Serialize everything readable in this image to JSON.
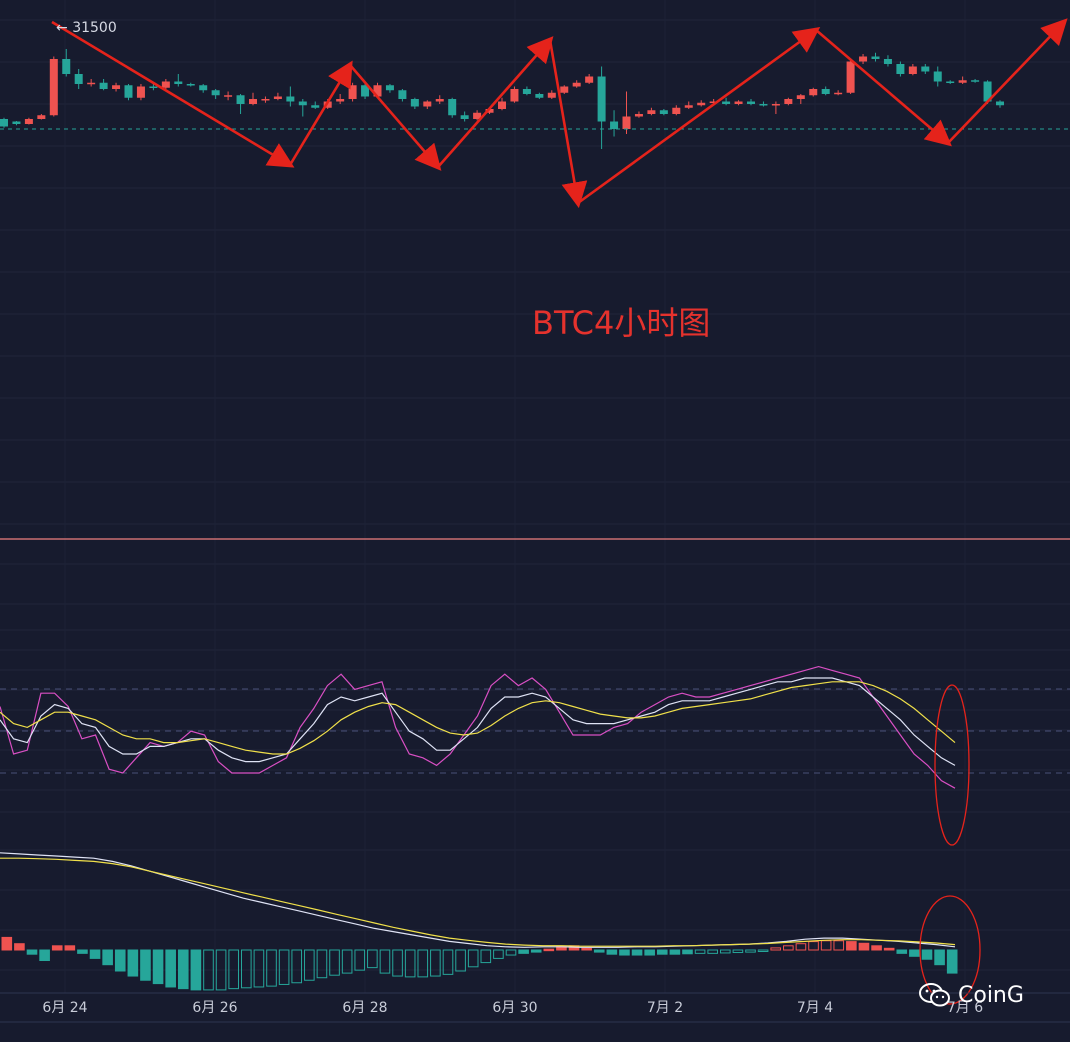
{
  "price_marker": {
    "arrow": "←",
    "value": "31500"
  },
  "overlay_title": "BTC4小时图",
  "watermark": {
    "icon": "wechat-icon",
    "text": "CoinG"
  },
  "x_axis_labels": [
    "6月 24",
    "6月 26",
    "6月 28",
    "6月 30",
    "7月 2",
    "7月 4",
    "7月 6"
  ],
  "colors": {
    "background": "#171b2e",
    "up": "#ef5350",
    "down": "#26a69a",
    "annotation": "#e5231b",
    "kdj_j": "#d94fc4",
    "kdj_k": "#dfe3f5",
    "kdj_d": "#f0e04a",
    "macd_dif": "#dfe3f5",
    "macd_dea": "#f0e04a",
    "divider": "#f08080"
  },
  "chart_data": [
    {
      "type": "candlestick",
      "title": "BTC4小时图",
      "price_label": "31500",
      "candles_ohlc": [
        [
          0.4,
          0.1,
          0.45,
          0.05
        ],
        [
          0.3,
          0.2,
          0.32,
          0.15
        ],
        [
          0.2,
          0.4,
          0.45,
          0.18
        ],
        [
          0.4,
          0.55,
          0.6,
          0.38
        ],
        [
          0.55,
          2.8,
          2.9,
          0.5
        ],
        [
          2.8,
          2.2,
          3.2,
          2.1
        ],
        [
          2.2,
          1.8,
          2.4,
          1.6
        ],
        [
          1.8,
          1.85,
          2.0,
          1.7
        ],
        [
          1.85,
          1.6,
          2.0,
          1.55
        ],
        [
          1.6,
          1.75,
          1.85,
          1.5
        ],
        [
          1.75,
          1.25,
          1.8,
          1.15
        ],
        [
          1.25,
          1.7,
          1.8,
          1.15
        ],
        [
          1.7,
          1.65,
          1.8,
          1.55
        ],
        [
          1.65,
          1.9,
          2.0,
          1.6
        ],
        [
          1.9,
          1.8,
          2.2,
          1.7
        ],
        [
          1.8,
          1.75,
          1.85,
          1.7
        ],
        [
          1.75,
          1.55,
          1.8,
          1.45
        ],
        [
          1.55,
          1.35,
          1.6,
          1.2
        ],
        [
          1.35,
          1.35,
          1.5,
          1.15
        ],
        [
          1.35,
          1.0,
          1.4,
          0.6
        ],
        [
          1.0,
          1.2,
          1.45,
          0.95
        ],
        [
          1.2,
          1.2,
          1.3,
          1.05
        ],
        [
          1.2,
          1.3,
          1.45,
          1.15
        ],
        [
          1.3,
          1.1,
          1.7,
          0.9
        ],
        [
          1.1,
          0.95,
          1.2,
          0.5
        ],
        [
          0.95,
          0.85,
          1.1,
          0.8
        ],
        [
          0.85,
          1.1,
          1.2,
          0.8
        ],
        [
          1.1,
          1.2,
          1.4,
          1.0
        ],
        [
          1.2,
          1.75,
          1.85,
          1.1
        ],
        [
          1.75,
          1.3,
          1.85,
          1.2
        ],
        [
          1.3,
          1.75,
          1.85,
          1.25
        ],
        [
          1.75,
          1.55,
          1.8,
          1.45
        ],
        [
          1.55,
          1.2,
          1.6,
          1.1
        ],
        [
          1.2,
          0.9,
          1.25,
          0.8
        ],
        [
          0.9,
          1.1,
          1.15,
          0.8
        ],
        [
          1.1,
          1.2,
          1.35,
          1.0
        ],
        [
          1.2,
          0.55,
          1.25,
          0.45
        ],
        [
          0.55,
          0.4,
          0.7,
          0.3
        ],
        [
          0.4,
          0.65,
          0.75,
          0.35
        ],
        [
          0.65,
          0.8,
          0.85,
          0.6
        ],
        [
          0.8,
          1.1,
          1.25,
          0.75
        ],
        [
          1.1,
          1.6,
          1.7,
          1.05
        ],
        [
          1.6,
          1.4,
          1.7,
          1.35
        ],
        [
          1.4,
          1.25,
          1.45,
          1.2
        ],
        [
          1.25,
          1.45,
          1.55,
          1.2
        ],
        [
          1.45,
          1.7,
          1.75,
          1.4
        ],
        [
          1.7,
          1.85,
          1.95,
          1.65
        ],
        [
          1.85,
          2.1,
          2.2,
          1.8
        ],
        [
          2.1,
          0.3,
          2.5,
          -0.8
        ],
        [
          0.3,
          0.0,
          0.75,
          -0.3
        ],
        [
          0.0,
          0.5,
          1.5,
          -0.2
        ],
        [
          0.5,
          0.6,
          0.7,
          0.45
        ],
        [
          0.6,
          0.75,
          0.85,
          0.55
        ],
        [
          0.75,
          0.6,
          0.8,
          0.55
        ],
        [
          0.6,
          0.85,
          0.95,
          0.55
        ],
        [
          0.85,
          0.95,
          1.1,
          0.8
        ],
        [
          0.95,
          1.05,
          1.15,
          0.9
        ],
        [
          1.05,
          1.1,
          1.2,
          1.0
        ],
        [
          1.1,
          1.0,
          1.25,
          0.95
        ],
        [
          1.0,
          1.1,
          1.15,
          0.95
        ],
        [
          1.1,
          1.0,
          1.2,
          0.95
        ],
        [
          1.0,
          0.95,
          1.1,
          0.9
        ],
        [
          0.95,
          1.0,
          1.1,
          0.6
        ],
        [
          1.0,
          1.2,
          1.25,
          0.95
        ],
        [
          1.2,
          1.35,
          1.4,
          1.0
        ],
        [
          1.35,
          1.6,
          1.65,
          1.3
        ],
        [
          1.6,
          1.4,
          1.7,
          1.35
        ],
        [
          1.4,
          1.45,
          1.55,
          1.35
        ],
        [
          1.45,
          2.7,
          2.8,
          1.4
        ],
        [
          2.7,
          2.9,
          3.0,
          2.6
        ],
        [
          2.9,
          2.8,
          3.05,
          2.7
        ],
        [
          2.8,
          2.6,
          2.95,
          2.5
        ],
        [
          2.6,
          2.2,
          2.7,
          2.1
        ],
        [
          2.2,
          2.5,
          2.6,
          2.15
        ],
        [
          2.5,
          2.3,
          2.6,
          2.2
        ],
        [
          2.3,
          1.9,
          2.5,
          1.7
        ],
        [
          1.9,
          1.85,
          1.95,
          1.8
        ],
        [
          1.85,
          1.95,
          2.1,
          1.8
        ],
        [
          1.95,
          1.9,
          2.0,
          1.85
        ],
        [
          1.9,
          1.1,
          1.95,
          1.0
        ],
        [
          1.1,
          0.95,
          1.15,
          0.85
        ]
      ]
    },
    {
      "type": "line",
      "indicator": "KDJ",
      "series": [
        {
          "values": [
            55,
            30,
            32,
            62,
            62,
            55,
            38,
            40,
            22,
            20,
            28,
            36,
            34,
            36,
            42,
            40,
            26,
            20,
            20,
            20,
            24,
            28,
            44,
            54,
            66,
            72,
            64,
            66,
            68,
            44,
            30,
            28,
            24,
            30,
            40,
            50,
            66,
            72,
            66,
            70,
            64,
            52,
            40,
            40,
            40,
            44,
            46,
            52,
            56,
            60,
            62,
            60,
            60,
            62,
            64,
            66,
            68,
            70,
            72,
            74,
            76,
            74,
            72,
            70,
            60,
            50,
            40,
            30,
            24,
            16,
            12
          ]
        },
        {
          "values": [
            48,
            38,
            36,
            50,
            56,
            54,
            46,
            44,
            34,
            30,
            30,
            34,
            34,
            36,
            38,
            38,
            32,
            28,
            26,
            26,
            28,
            30,
            38,
            46,
            56,
            60,
            58,
            60,
            62,
            52,
            42,
            38,
            32,
            32,
            38,
            44,
            54,
            60,
            60,
            62,
            60,
            54,
            48,
            46,
            46,
            46,
            48,
            50,
            52,
            56,
            58,
            58,
            58,
            60,
            62,
            64,
            66,
            68,
            68,
            70,
            70,
            70,
            68,
            66,
            60,
            54,
            48,
            40,
            34,
            28,
            24
          ]
        },
        {
          "values": [
            52,
            46,
            44,
            48,
            52,
            52,
            50,
            48,
            44,
            40,
            38,
            38,
            36,
            36,
            37,
            38,
            36,
            34,
            32,
            31,
            30,
            30,
            33,
            37,
            42,
            48,
            52,
            55,
            57,
            56,
            52,
            48,
            44,
            41,
            40,
            41,
            45,
            50,
            54,
            57,
            58,
            57,
            55,
            53,
            51,
            50,
            49,
            49,
            50,
            52,
            54,
            55,
            56,
            57,
            58,
            59,
            61,
            63,
            65,
            66,
            67,
            68,
            68,
            68,
            66,
            63,
            59,
            54,
            48,
            42,
            36
          ]
        }
      ]
    },
    {
      "type": "bar",
      "indicator": "MACD",
      "histogram": [
        0.3,
        0.15,
        -0.1,
        -0.25,
        0.1,
        0.1,
        -0.08,
        -0.2,
        -0.35,
        -0.5,
        -0.62,
        -0.72,
        -0.8,
        -0.88,
        -0.92,
        -0.95,
        -0.95,
        -0.95,
        -0.92,
        -0.9,
        -0.88,
        -0.86,
        -0.82,
        -0.78,
        -0.72,
        -0.66,
        -0.6,
        -0.55,
        -0.48,
        -0.42,
        -0.55,
        -0.62,
        -0.64,
        -0.64,
        -0.62,
        -0.58,
        -0.5,
        -0.4,
        -0.3,
        -0.2,
        -0.12,
        -0.08,
        -0.05,
        0.02,
        0.08,
        0.1,
        0.04,
        -0.05,
        -0.1,
        -0.12,
        -0.12,
        -0.12,
        -0.1,
        -0.1,
        -0.09,
        -0.08,
        -0.08,
        -0.07,
        -0.06,
        -0.05,
        -0.02,
        0.05,
        0.1,
        0.15,
        0.2,
        0.22,
        0.22,
        0.2,
        0.16,
        0.1,
        0.04,
        -0.08,
        -0.15,
        -0.22,
        -0.35,
        -0.55
      ],
      "series": [
        {
          "values": [
            1.8,
            1.78,
            1.76,
            1.74,
            1.72,
            1.7,
            1.64,
            1.56,
            1.46,
            1.36,
            1.26,
            1.16,
            1.06,
            0.96,
            0.88,
            0.8,
            0.72,
            0.64,
            0.56,
            0.48,
            0.4,
            0.34,
            0.28,
            0.22,
            0.16,
            0.12,
            0.08,
            0.06,
            0.05,
            0.06,
            0.06,
            0.05,
            0.05,
            0.05,
            0.06,
            0.06,
            0.07,
            0.08,
            0.09,
            0.1,
            0.11,
            0.13,
            0.16,
            0.2,
            0.22,
            0.22,
            0.2,
            0.18,
            0.16,
            0.13,
            0.1,
            0.06
          ]
        },
        {
          "values": [
            1.7,
            1.7,
            1.69,
            1.68,
            1.66,
            1.64,
            1.6,
            1.54,
            1.46,
            1.38,
            1.3,
            1.22,
            1.14,
            1.06,
            0.98,
            0.9,
            0.82,
            0.74,
            0.66,
            0.58,
            0.5,
            0.42,
            0.35,
            0.28,
            0.22,
            0.18,
            0.14,
            0.11,
            0.09,
            0.08,
            0.08,
            0.07,
            0.07,
            0.07,
            0.07,
            0.07,
            0.08,
            0.08,
            0.09,
            0.1,
            0.11,
            0.12,
            0.14,
            0.16,
            0.18,
            0.19,
            0.19,
            0.18,
            0.17,
            0.15,
            0.13,
            0.1
          ]
        }
      ],
      "x_labels": [
        "6月 24",
        "6月 26",
        "6月 28",
        "6月 30",
        "7月 2",
        "7月 4",
        "7月 6"
      ]
    }
  ]
}
